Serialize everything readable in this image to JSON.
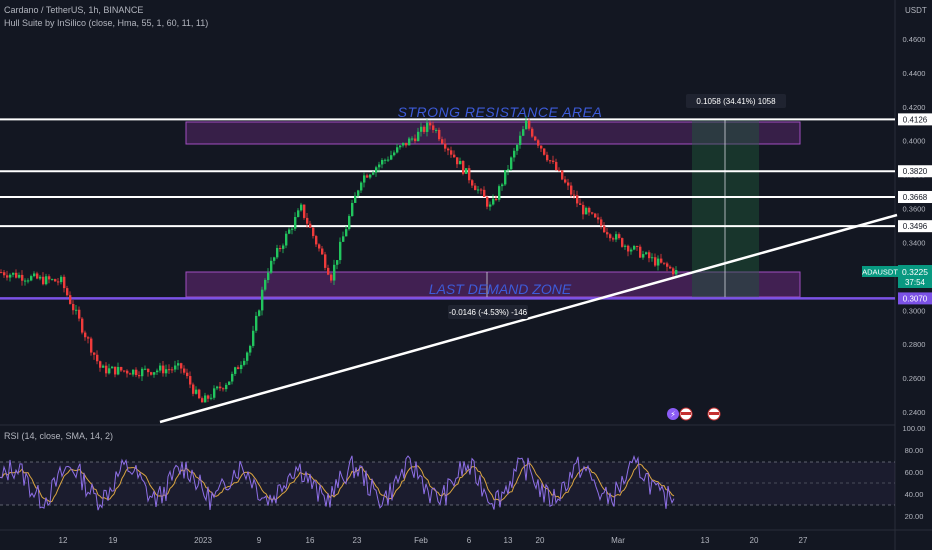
{
  "header": {
    "symbol_line": "Cardano / TetherUS, 1h, BINANCE",
    "indicator_line": "Hull Suite by InSilico (close, Hma, 55, 1, 60, 11, 11)",
    "currency": "USDT"
  },
  "rsi": {
    "label": "RSI (14, close, SMA, 14, 2)",
    "ticks": [
      "100.00",
      "80.00",
      "60.00",
      "40.00",
      "20.00"
    ]
  },
  "price_axis": {
    "ticks": [
      "0.4600",
      "0.4400",
      "0.4200",
      "0.4000",
      "0.3800",
      "0.3600",
      "0.3400",
      "0.3000",
      "0.2800",
      "0.2600",
      "0.2400"
    ]
  },
  "time_axis": {
    "ticks": [
      "12",
      "19",
      "2023",
      "9",
      "16",
      "23",
      "Feb",
      "6",
      "13",
      "20",
      "Mar",
      "13",
      "20",
      "27"
    ]
  },
  "annotations": {
    "resistance_text": "STRONG RESISTANCE AREA",
    "demand_text": "LAST DEMAND ZONE",
    "measure_up": "0.1058 (34.41%) 1058",
    "measure_down": "-0.0146 (-4.53%) -146"
  },
  "level_tags": [
    "0.4126",
    "0.3820",
    "0.3668",
    "0.3496",
    "0.3070"
  ],
  "current": {
    "ticker": "ADAUSDT",
    "price": "0.3225",
    "countdown": "37:54"
  },
  "colors": {
    "bg": "#131722",
    "up": "#22c55e",
    "down": "#ef3b3b",
    "zone": "#7b2d8e",
    "support": "#7b52e6",
    "rsi_line": "#8e6fe6",
    "rsi_ma": "#d9a441",
    "price_tag": "#089981"
  },
  "chart_data": {
    "type": "candlestick",
    "symbol": "ADAUSDT",
    "timeframe": "1h",
    "price_path": [
      {
        "x": "Jan 7",
        "y": 0.3225
      },
      {
        "x": "Jan 10",
        "y": 0.318
      },
      {
        "x": "Jan 12",
        "y": 0.317
      },
      {
        "x": "Jan 15",
        "y": 0.265
      },
      {
        "x": "Jan 19",
        "y": 0.264
      },
      {
        "x": "Jan 22",
        "y": 0.266
      },
      {
        "x": "Dec 30",
        "y": 0.245
      },
      {
        "x": "2023",
        "y": 0.26
      },
      {
        "x": "Jan 6",
        "y": 0.28
      },
      {
        "x": "Jan 9",
        "y": 0.322
      },
      {
        "x": "Jan 13",
        "y": 0.36
      },
      {
        "x": "Jan 18",
        "y": 0.32
      },
      {
        "x": "Jan 23",
        "y": 0.378
      },
      {
        "x": "Feb 2",
        "y": 0.41
      },
      {
        "x": "Feb 8",
        "y": 0.36
      },
      {
        "x": "Feb 14",
        "y": 0.41
      },
      {
        "x": "Feb 20",
        "y": 0.36
      },
      {
        "x": "Feb 26",
        "y": 0.34
      },
      {
        "x": "Mar 3",
        "y": 0.33
      },
      {
        "x": "Mar 7",
        "y": 0.3225
      }
    ],
    "horizontal_levels": [
      0.4126,
      0.382,
      0.3668,
      0.3496,
      0.307
    ],
    "zones": [
      {
        "name": "STRONG RESISTANCE AREA",
        "y_top": 0.4126,
        "y_bottom": 0.3985
      },
      {
        "name": "LAST DEMAND ZONE",
        "y_top": 0.3225,
        "y_bottom": 0.307
      }
    ],
    "trendline": [
      {
        "x": "Dec 28",
        "y": 0.234
      },
      {
        "x": "Mar 27",
        "y": 0.356
      }
    ],
    "current_price": 0.3225,
    "ylim": [
      0.234,
      0.47
    ]
  }
}
